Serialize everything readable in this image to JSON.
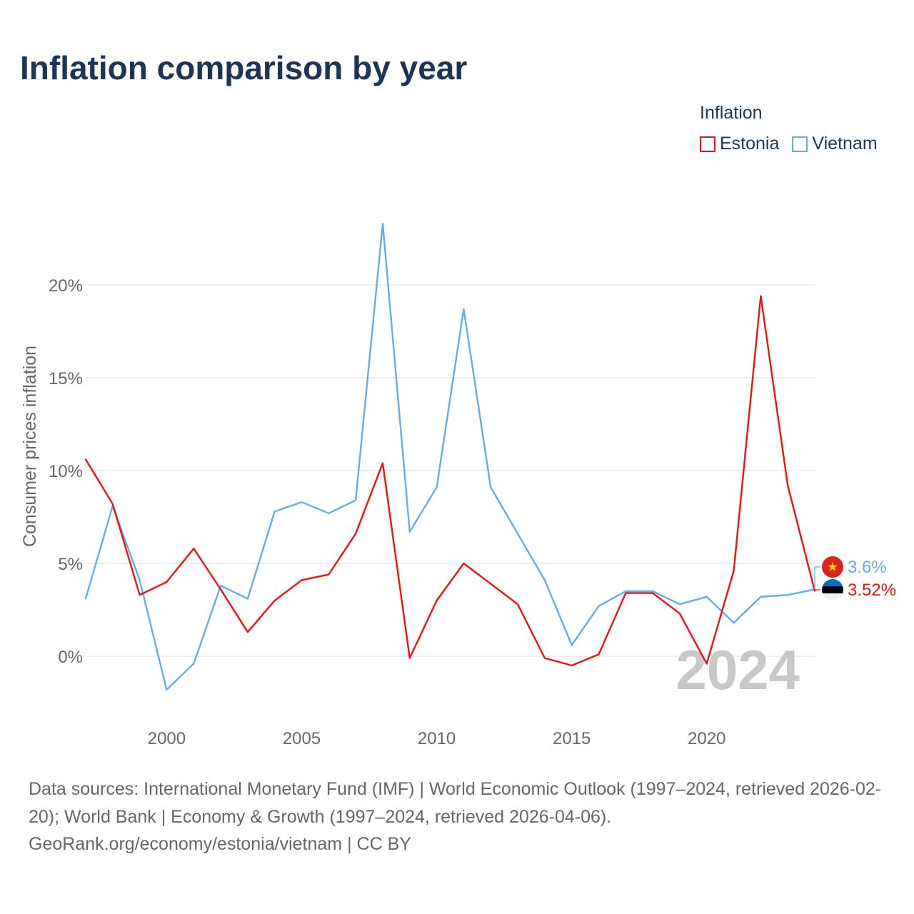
{
  "title": "Inflation comparison by year",
  "legend": {
    "title": "Inflation",
    "items": [
      {
        "label": "Estonia",
        "color": "#ee1111"
      },
      {
        "label": "Vietnam",
        "color": "#66aae6"
      }
    ]
  },
  "chart_data": {
    "type": "line",
    "title": "Inflation comparison by year",
    "xlabel": "",
    "ylabel": "Consumer prices inflation",
    "x": [
      1997,
      1998,
      1999,
      2000,
      2001,
      2002,
      2003,
      2004,
      2005,
      2006,
      2007,
      2008,
      2009,
      2010,
      2011,
      2012,
      2013,
      2014,
      2015,
      2016,
      2017,
      2018,
      2019,
      2020,
      2021,
      2022,
      2023,
      2024
    ],
    "xlim": [
      1997,
      2024
    ],
    "ylim": [
      -3.5,
      26.5
    ],
    "x_ticks": [
      2000,
      2005,
      2010,
      2015,
      2020
    ],
    "x_tick_labels": [
      "2000",
      "2005",
      "2010",
      "2015",
      "2020"
    ],
    "y_ticks": [
      0,
      5,
      10,
      15,
      20
    ],
    "y_tick_labels": [
      "0%",
      "5%",
      "10%",
      "15%",
      "20%"
    ],
    "grid": true,
    "legend_position": "top-right",
    "series": [
      {
        "name": "Estonia",
        "color": "#ee1111",
        "values": [
          10.6,
          8.2,
          3.3,
          4.0,
          5.8,
          3.6,
          1.3,
          3.0,
          4.1,
          4.4,
          6.6,
          10.4,
          -0.1,
          3.0,
          5.0,
          3.9,
          2.8,
          -0.1,
          -0.5,
          0.1,
          3.4,
          3.4,
          2.3,
          -0.4,
          4.6,
          19.4,
          9.2,
          3.52
        ]
      },
      {
        "name": "Vietnam",
        "color": "#66aae6",
        "values": [
          3.1,
          8.1,
          4.1,
          -1.8,
          -0.4,
          3.8,
          3.1,
          7.8,
          8.3,
          7.7,
          8.4,
          23.3,
          6.7,
          9.1,
          18.7,
          9.1,
          6.6,
          4.1,
          0.6,
          2.7,
          3.5,
          3.5,
          2.8,
          3.2,
          1.8,
          3.2,
          3.3,
          3.6
        ]
      }
    ],
    "end_labels": [
      {
        "series": "Vietnam",
        "text": "3.6%"
      },
      {
        "series": "Estonia",
        "text": "3.52%"
      }
    ],
    "watermark": "2024"
  },
  "footer": {
    "sources": "Data sources: International Monetary Fund (IMF) | World Economic Outlook (1997–2024, retrieved 2026-02-20); World Bank | Economy & Growth (1997–2024, retrieved 2026-04-06).",
    "credit": "GeoRank.org/economy/estonia/vietnam | CC BY"
  }
}
